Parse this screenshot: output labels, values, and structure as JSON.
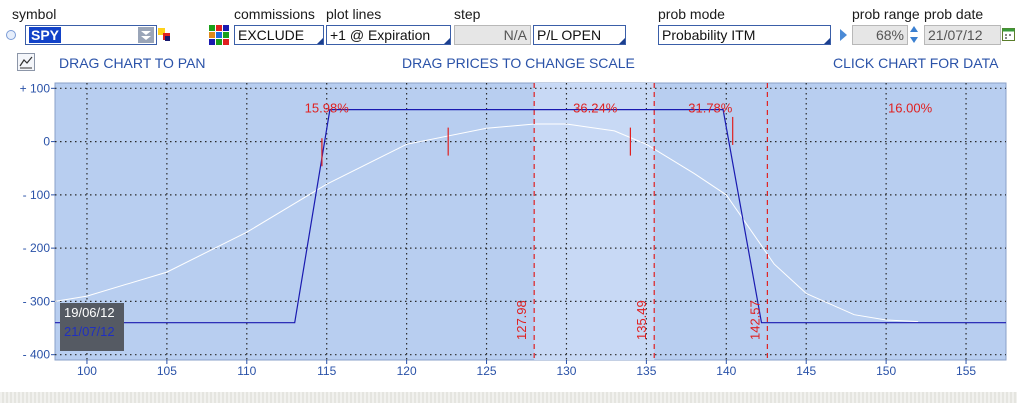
{
  "controls": {
    "symbol": {
      "label": "symbol",
      "value": "SPY"
    },
    "commissions": {
      "label": "commissions",
      "value": "EXCLUDE"
    },
    "plot_lines": {
      "label": "plot lines",
      "value": "+1 @ Expiration"
    },
    "step": {
      "label": "step",
      "value": "N/A",
      "pl_value": "P/L OPEN"
    },
    "prob_mode": {
      "label": "prob mode",
      "value": "Probability ITM"
    },
    "prob_range": {
      "label": "prob range",
      "value": "68%"
    },
    "prob_date": {
      "label": "prob date",
      "value": "21/07/12"
    }
  },
  "toolbar": {
    "pan": "DRAG CHART TO PAN",
    "scale": "DRAG PRICES TO CHANGE SCALE",
    "click": "CLICK CHART FOR DATA"
  },
  "legend": {
    "date1": "19/06/12",
    "date2": "21/07/12"
  },
  "colors": {
    "plot_bg": "#b8cef0",
    "band": "#c8d9f5",
    "pl_line": "#1a1ab0",
    "prob_line": "#ffffff",
    "red": "#e02020",
    "axis_text": "#2a52a8"
  },
  "chart_data": {
    "type": "line",
    "xlim": [
      98,
      157.5
    ],
    "ylim": [
      -410,
      110
    ],
    "x_ticks": [
      100,
      105,
      110,
      115,
      120,
      125,
      130,
      135,
      140,
      145,
      150,
      155
    ],
    "y_ticks": [
      100,
      0,
      -100,
      -200,
      -300,
      -400
    ],
    "y_tick_labels": [
      "+ 100",
      "0",
      "- 100",
      "- 200",
      "- 300",
      "- 400"
    ],
    "grid": true,
    "pl_series": {
      "x": [
        98,
        113,
        115.2,
        139.8,
        142.2,
        157.5
      ],
      "y": [
        -340,
        -340,
        60,
        60,
        -340,
        -340
      ]
    },
    "prob_series": {
      "x": [
        98,
        100,
        105,
        110,
        115,
        120,
        125,
        128,
        130,
        133,
        135,
        138,
        140,
        143,
        145,
        148,
        150,
        152
      ],
      "y": [
        -300,
        -290,
        -245,
        -170,
        -80,
        -5,
        25,
        33,
        33,
        20,
        -5,
        -60,
        -100,
        -230,
        -285,
        -325,
        -335,
        -338
      ]
    },
    "breakevens": [
      {
        "x": 114.7,
        "y": -20
      },
      {
        "x": 122.6,
        "y": 0
      },
      {
        "x": 134,
        "y": 0
      },
      {
        "x": 140.4,
        "y": 20
      }
    ],
    "price_lines": [
      {
        "x": 127.98,
        "label": "127.98"
      },
      {
        "x": 135.49,
        "label": "135.49"
      },
      {
        "x": 142.57,
        "label": "142.57"
      }
    ],
    "band_x": [
      127.98,
      135.49
    ],
    "prob_labels": [
      {
        "x": 115,
        "y": 70,
        "text": "15.98%"
      },
      {
        "x": 131.8,
        "y": 70,
        "text": "36.24%"
      },
      {
        "x": 139,
        "y": 70,
        "text": "31.78%"
      },
      {
        "x": 151.5,
        "y": 70,
        "text": "16.00%"
      }
    ]
  }
}
